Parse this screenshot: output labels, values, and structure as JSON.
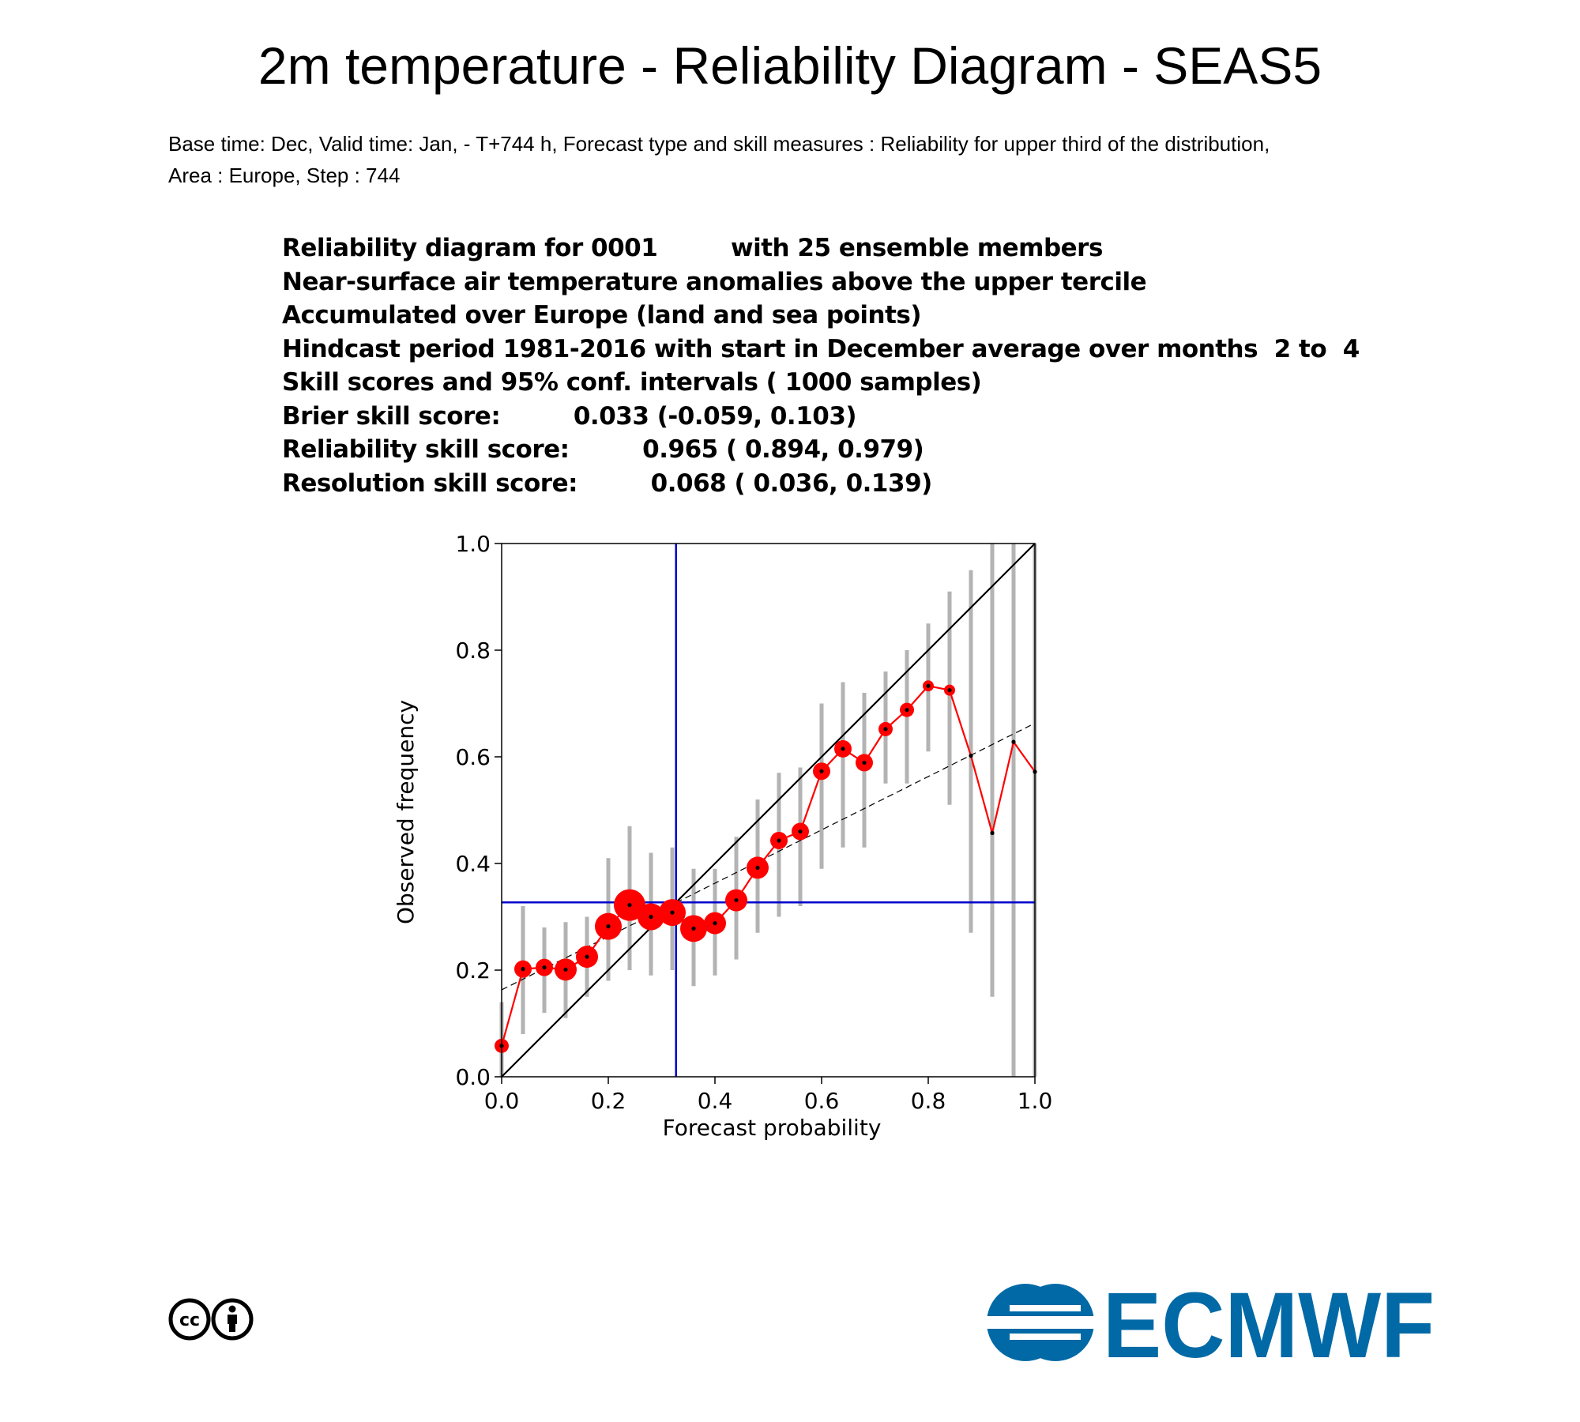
{
  "title": "2m temperature - Reliability Diagram - SEAS5",
  "subtitle_lines": [
    "Base time: Dec, Valid time: Jan, - T+744 h, Forecast type and skill measures : Reliability for upper third of the distribution,",
    "Area : Europe, Step : 744"
  ],
  "info_lines": [
    "Reliability diagram for 0001         with 25 ensemble members",
    "Near-surface air temperature anomalies above the upper tercile",
    "Accumulated over Europe (land and sea points)",
    "Hindcast period 1981-2016 with start in December average over months  2 to  4",
    "Skill scores and 95% conf. intervals ( 1000 samples)",
    "Brier skill score:         0.033 (-0.059, 0.103)",
    "Reliability skill score:         0.965 ( 0.894, 0.979)",
    "Resolution skill score:         0.068 ( 0.036, 0.139)"
  ],
  "logos": {
    "left": "cc",
    "right": "ECMWF"
  },
  "colors": {
    "reliability_line": "#ff0000",
    "climatology": "#0000cc",
    "conf_bars": "#b3b3b3",
    "brand": "#0069a6"
  },
  "chart_data": {
    "type": "scatter",
    "xlabel": "Forecast probability",
    "ylabel": "Observed frequency",
    "xlim": [
      0,
      1
    ],
    "ylim": [
      0,
      1
    ],
    "xticks": [
      "0.0",
      "0.2",
      "0.4",
      "0.6",
      "0.8",
      "1.0"
    ],
    "yticks": [
      "0.0",
      "0.2",
      "0.4",
      "0.6",
      "0.8",
      "1.0"
    ],
    "climatology": 0.327,
    "diagonal": [
      [
        0,
        0
      ],
      [
        1,
        1
      ]
    ],
    "regression_line": [
      [
        0,
        0.163
      ],
      [
        1,
        0.663
      ]
    ],
    "points": [
      {
        "x": 0.0,
        "y": 0.058,
        "lo": 0.0,
        "hi": 0.14,
        "size": 2
      },
      {
        "x": 0.04,
        "y": 0.202,
        "lo": 0.08,
        "hi": 0.32,
        "size": 3
      },
      {
        "x": 0.08,
        "y": 0.205,
        "lo": 0.12,
        "hi": 0.28,
        "size": 3
      },
      {
        "x": 0.12,
        "y": 0.201,
        "lo": 0.11,
        "hi": 0.29,
        "size": 4
      },
      {
        "x": 0.16,
        "y": 0.225,
        "lo": 0.15,
        "hi": 0.3,
        "size": 4
      },
      {
        "x": 0.2,
        "y": 0.282,
        "lo": 0.18,
        "hi": 0.41,
        "size": 5
      },
      {
        "x": 0.24,
        "y": 0.322,
        "lo": 0.2,
        "hi": 0.47,
        "size": 6
      },
      {
        "x": 0.28,
        "y": 0.3,
        "lo": 0.19,
        "hi": 0.42,
        "size": 5
      },
      {
        "x": 0.32,
        "y": 0.308,
        "lo": 0.2,
        "hi": 0.43,
        "size": 5
      },
      {
        "x": 0.36,
        "y": 0.278,
        "lo": 0.17,
        "hi": 0.39,
        "size": 5
      },
      {
        "x": 0.4,
        "y": 0.288,
        "lo": 0.19,
        "hi": 0.39,
        "size": 4
      },
      {
        "x": 0.44,
        "y": 0.331,
        "lo": 0.22,
        "hi": 0.45,
        "size": 4
      },
      {
        "x": 0.48,
        "y": 0.392,
        "lo": 0.27,
        "hi": 0.52,
        "size": 4
      },
      {
        "x": 0.52,
        "y": 0.443,
        "lo": 0.3,
        "hi": 0.57,
        "size": 3
      },
      {
        "x": 0.56,
        "y": 0.46,
        "lo": 0.32,
        "hi": 0.58,
        "size": 3
      },
      {
        "x": 0.6,
        "y": 0.573,
        "lo": 0.39,
        "hi": 0.7,
        "size": 3
      },
      {
        "x": 0.64,
        "y": 0.615,
        "lo": 0.43,
        "hi": 0.74,
        "size": 3
      },
      {
        "x": 0.68,
        "y": 0.589,
        "lo": 0.43,
        "hi": 0.72,
        "size": 3
      },
      {
        "x": 0.72,
        "y": 0.652,
        "lo": 0.55,
        "hi": 0.76,
        "size": 2
      },
      {
        "x": 0.76,
        "y": 0.688,
        "lo": 0.55,
        "hi": 0.8,
        "size": 2
      },
      {
        "x": 0.8,
        "y": 0.733,
        "lo": 0.61,
        "hi": 0.85,
        "size": 1
      },
      {
        "x": 0.84,
        "y": 0.725,
        "lo": 0.51,
        "hi": 0.91,
        "size": 1
      },
      {
        "x": 0.88,
        "y": 0.602,
        "lo": 0.27,
        "hi": 0.95,
        "size": 0
      },
      {
        "x": 0.92,
        "y": 0.457,
        "lo": 0.15,
        "hi": 1.0,
        "size": 0
      },
      {
        "x": 0.96,
        "y": 0.628,
        "lo": 0.0,
        "hi": 1.0,
        "size": 0
      },
      {
        "x": 1.0,
        "y": 0.572,
        "lo": 0.0,
        "hi": 1.0,
        "size": 0
      }
    ]
  }
}
